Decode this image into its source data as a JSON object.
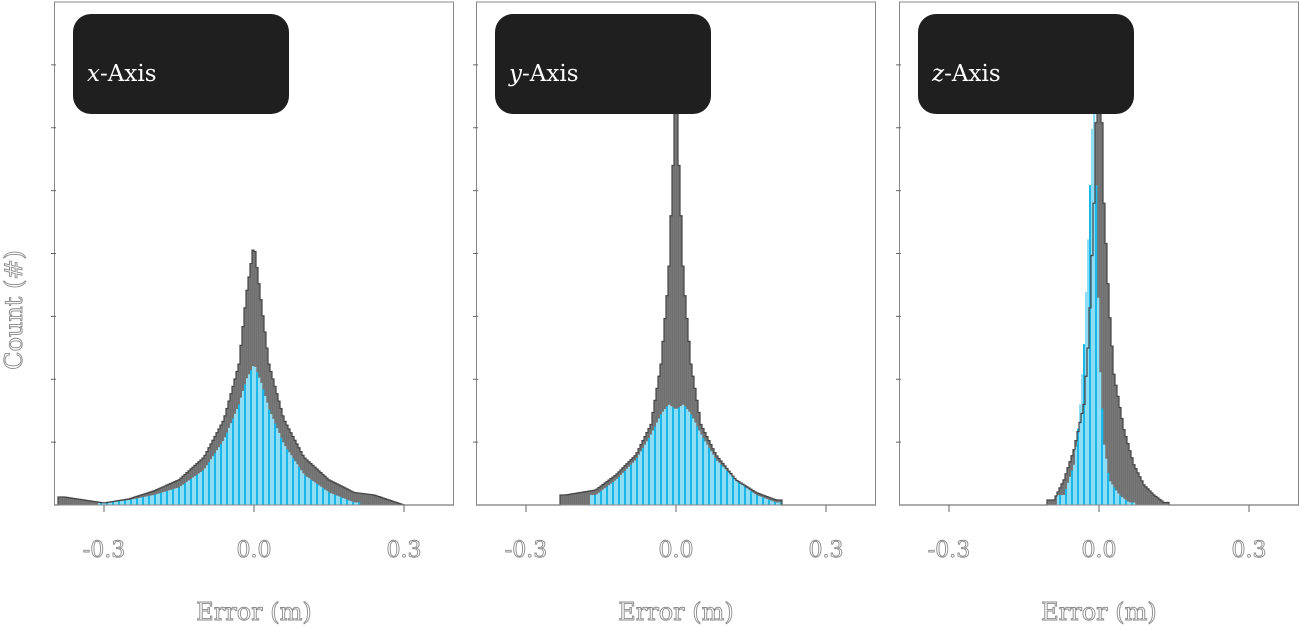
{
  "figure": {
    "ylabel": "Count (#)",
    "xlabel": "Error (m)"
  },
  "colors": {
    "gray_series": "#5f5f5f",
    "blue_fill": "#8fdcf5",
    "blue_edge": "#1ab8e8",
    "legend_bg": "#1f1f1f",
    "axis": "#888888"
  },
  "chart_data": [
    {
      "type": "histogram",
      "axis_var": "x",
      "legend_label": "-Axis",
      "xlabel": "Error (m)",
      "ylabel": "Count (#)",
      "xlim": [
        -0.4,
        0.4
      ],
      "ylim": [
        0,
        1
      ],
      "x_ticks": [
        "-0.3",
        "0.0",
        "0.3"
      ],
      "grid": false,
      "legend_position": "top-left",
      "series": [
        {
          "color": "gray",
          "x": [
            -0.38,
            -0.3,
            -0.25,
            -0.2,
            -0.15,
            -0.1,
            -0.06,
            -0.03,
            -0.015,
            0.0,
            0.015,
            0.03,
            0.06,
            0.1,
            0.15,
            0.2,
            0.24,
            0.3
          ],
          "y": [
            0.016,
            0.004,
            0.012,
            0.028,
            0.05,
            0.095,
            0.17,
            0.28,
            0.42,
            0.52,
            0.4,
            0.28,
            0.17,
            0.095,
            0.05,
            0.025,
            0.02,
            0.0
          ]
        },
        {
          "color": "blue",
          "x": [
            -0.3,
            -0.25,
            -0.2,
            -0.15,
            -0.1,
            -0.06,
            -0.03,
            -0.015,
            0.0,
            0.015,
            0.03,
            0.06,
            0.1,
            0.15,
            0.2
          ],
          "y": [
            0.004,
            0.01,
            0.02,
            0.035,
            0.07,
            0.13,
            0.2,
            0.25,
            0.28,
            0.24,
            0.19,
            0.12,
            0.06,
            0.025,
            0.005
          ]
        }
      ]
    },
    {
      "type": "histogram",
      "axis_var": "y",
      "legend_label": "-Axis",
      "xlabel": "Error (m)",
      "ylabel": "Count (#)",
      "xlim": [
        -0.4,
        0.4
      ],
      "ylim": [
        0,
        1
      ],
      "x_ticks": [
        "-0.3",
        "0.0",
        "0.3"
      ],
      "grid": false,
      "legend_position": "top-left",
      "series": [
        {
          "color": "gray",
          "x": [
            -0.22,
            -0.16,
            -0.12,
            -0.08,
            -0.05,
            -0.03,
            -0.015,
            -0.005,
            0.0,
            0.005,
            0.015,
            0.03,
            0.05,
            0.08,
            0.12,
            0.16,
            0.2
          ],
          "y": [
            0.02,
            0.03,
            0.06,
            0.1,
            0.16,
            0.28,
            0.45,
            0.7,
            1.0,
            0.7,
            0.45,
            0.28,
            0.16,
            0.1,
            0.05,
            0.025,
            0.01
          ]
        },
        {
          "color": "blue",
          "x": [
            -0.16,
            -0.12,
            -0.08,
            -0.05,
            -0.03,
            -0.015,
            0.0,
            0.015,
            0.03,
            0.05,
            0.08,
            0.12,
            0.16,
            0.2
          ],
          "y": [
            0.02,
            0.05,
            0.09,
            0.14,
            0.18,
            0.2,
            0.19,
            0.2,
            0.18,
            0.14,
            0.09,
            0.05,
            0.02,
            0.005
          ]
        }
      ]
    },
    {
      "type": "histogram",
      "axis_var": "z",
      "legend_label": "-Axis",
      "xlabel": "Error (m)",
      "ylabel": "Count (#)",
      "xlim": [
        -0.4,
        0.4
      ],
      "ylim": [
        0,
        1
      ],
      "x_ticks": [
        "-0.3",
        "0.0",
        "0.3"
      ],
      "grid": false,
      "legend_position": "top-left",
      "series": [
        {
          "color": "gray",
          "x": [
            -0.09,
            -0.07,
            -0.05,
            -0.03,
            -0.02,
            -0.01,
            0.0,
            0.01,
            0.02,
            0.03,
            0.05,
            0.07,
            0.09,
            0.11,
            0.13
          ],
          "y": [
            0.01,
            0.05,
            0.11,
            0.2,
            0.34,
            0.6,
            1.0,
            0.6,
            0.4,
            0.26,
            0.15,
            0.08,
            0.04,
            0.02,
            0.005
          ]
        },
        {
          "color": "blue",
          "x": [
            -0.07,
            -0.05,
            -0.04,
            -0.03,
            -0.02,
            -0.01,
            0.0,
            0.01,
            0.02,
            0.04,
            0.06
          ],
          "y": [
            0.02,
            0.08,
            0.17,
            0.32,
            0.58,
            0.86,
            0.3,
            0.12,
            0.05,
            0.02,
            0.005
          ]
        }
      ]
    }
  ]
}
